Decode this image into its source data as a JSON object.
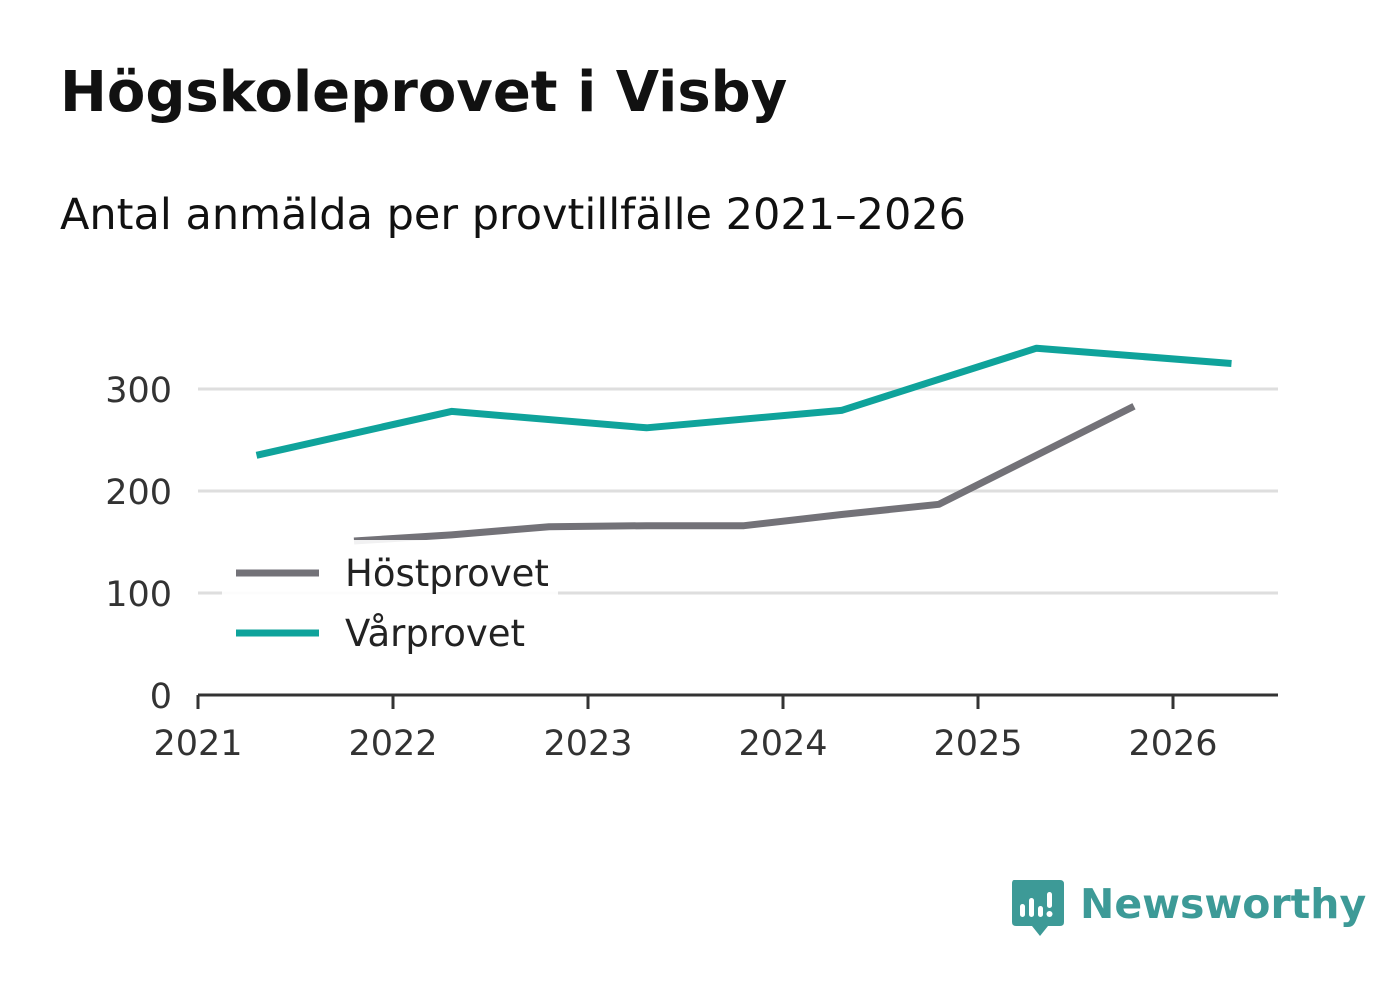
{
  "title": "Högskoleprovet i Visby",
  "subtitle": "Antal anmälda per provtillfälle 2021–2026",
  "brand": {
    "name": "Newsworthy",
    "icon": "bar-chart-bubble-icon",
    "color": "#3d9a97"
  },
  "chart_data": {
    "type": "line",
    "title": "Högskoleprovet i Visby",
    "subtitle": "Antal anmälda per provtillfälle 2021–2026",
    "xlabel": "",
    "ylabel": "",
    "xlim": [
      2021,
      2026.55
    ],
    "ylim": [
      0,
      340
    ],
    "xticks": [
      2021,
      2022,
      2023,
      2024,
      2025,
      2026
    ],
    "xtick_labels": [
      "2021",
      "2022",
      "2023",
      "2024",
      "2025",
      "2026"
    ],
    "yticks": [
      0,
      100,
      200,
      300
    ],
    "ytick_labels": [
      "0",
      "100",
      "200",
      "300"
    ],
    "grid": true,
    "legend_position": "lower-left",
    "series": [
      {
        "name": "Höstprovet",
        "color": "#737278",
        "x": [
          2021.8,
          2022.3,
          2022.8,
          2023.3,
          2023.8,
          2024.3,
          2024.8,
          2025.3,
          2025.8
        ],
        "values": [
          151,
          157,
          165,
          166,
          166,
          177,
          187,
          235,
          283
        ]
      },
      {
        "name": "Vårprovet",
        "color": "#0fa39b",
        "x": [
          2021.3,
          2022.3,
          2023.3,
          2024.3,
          2025.3,
          2026.3
        ],
        "values": [
          235,
          278,
          262,
          279,
          340,
          325
        ]
      }
    ]
  }
}
